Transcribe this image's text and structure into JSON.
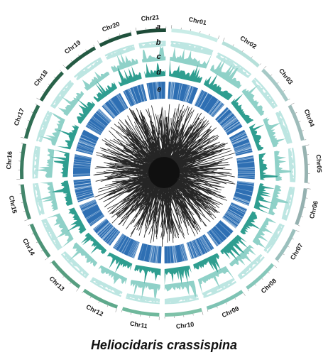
{
  "figure": {
    "species": "Heliocidaris crassispina",
    "track_letters": [
      "a",
      "b",
      "c",
      "d",
      "e"
    ],
    "chromosomes": [
      {
        "label": "Chr01",
        "span": 1.2,
        "color": "#c9ece7"
      },
      {
        "label": "Chr02",
        "span": 1.1,
        "color": "#b6e0da"
      },
      {
        "label": "Chr03",
        "span": 1.0,
        "color": "#a6c9c6"
      },
      {
        "label": "Chr04",
        "span": 0.95,
        "color": "#9ebcba"
      },
      {
        "label": "Chr05",
        "span": 0.95,
        "color": "#97b3b1"
      },
      {
        "label": "Chr06",
        "span": 0.95,
        "color": "#95b1b0"
      },
      {
        "label": "Chr07",
        "span": 0.9,
        "color": "#9bc0bd"
      },
      {
        "label": "Chr08",
        "span": 0.9,
        "color": "#86c7ba"
      },
      {
        "label": "Chr09",
        "span": 1.0,
        "color": "#7ec3b4"
      },
      {
        "label": "Chr10",
        "span": 0.95,
        "color": "#7fc2a9"
      },
      {
        "label": "Chr11",
        "span": 0.95,
        "color": "#6fb89c"
      },
      {
        "label": "Chr12",
        "span": 0.95,
        "color": "#5fa98c"
      },
      {
        "label": "Chr13",
        "span": 0.95,
        "color": "#579e80"
      },
      {
        "label": "Chr14",
        "span": 0.95,
        "color": "#4d9377"
      },
      {
        "label": "Chr15",
        "span": 0.9,
        "color": "#44876c"
      },
      {
        "label": "Chr16",
        "span": 0.9,
        "color": "#3a7b60"
      },
      {
        "label": "Chr17",
        "span": 0.9,
        "color": "#306e54"
      },
      {
        "label": "Chr18",
        "span": 0.9,
        "color": "#286249"
      },
      {
        "label": "Chr19",
        "span": 0.9,
        "color": "#245a43"
      },
      {
        "label": "Chr20",
        "span": 0.85,
        "color": "#20523d"
      },
      {
        "label": "Chr21",
        "span": 0.75,
        "color": "#1d4a37"
      }
    ],
    "colors": {
      "track_b": "#bde6e2",
      "track_c": "#8fd1c8",
      "track_d": "#2f9e90",
      "heatmap_base": "#2e6fb3",
      "heatmap_light": "#c9ddf0",
      "links": "#0d0d0d"
    }
  }
}
